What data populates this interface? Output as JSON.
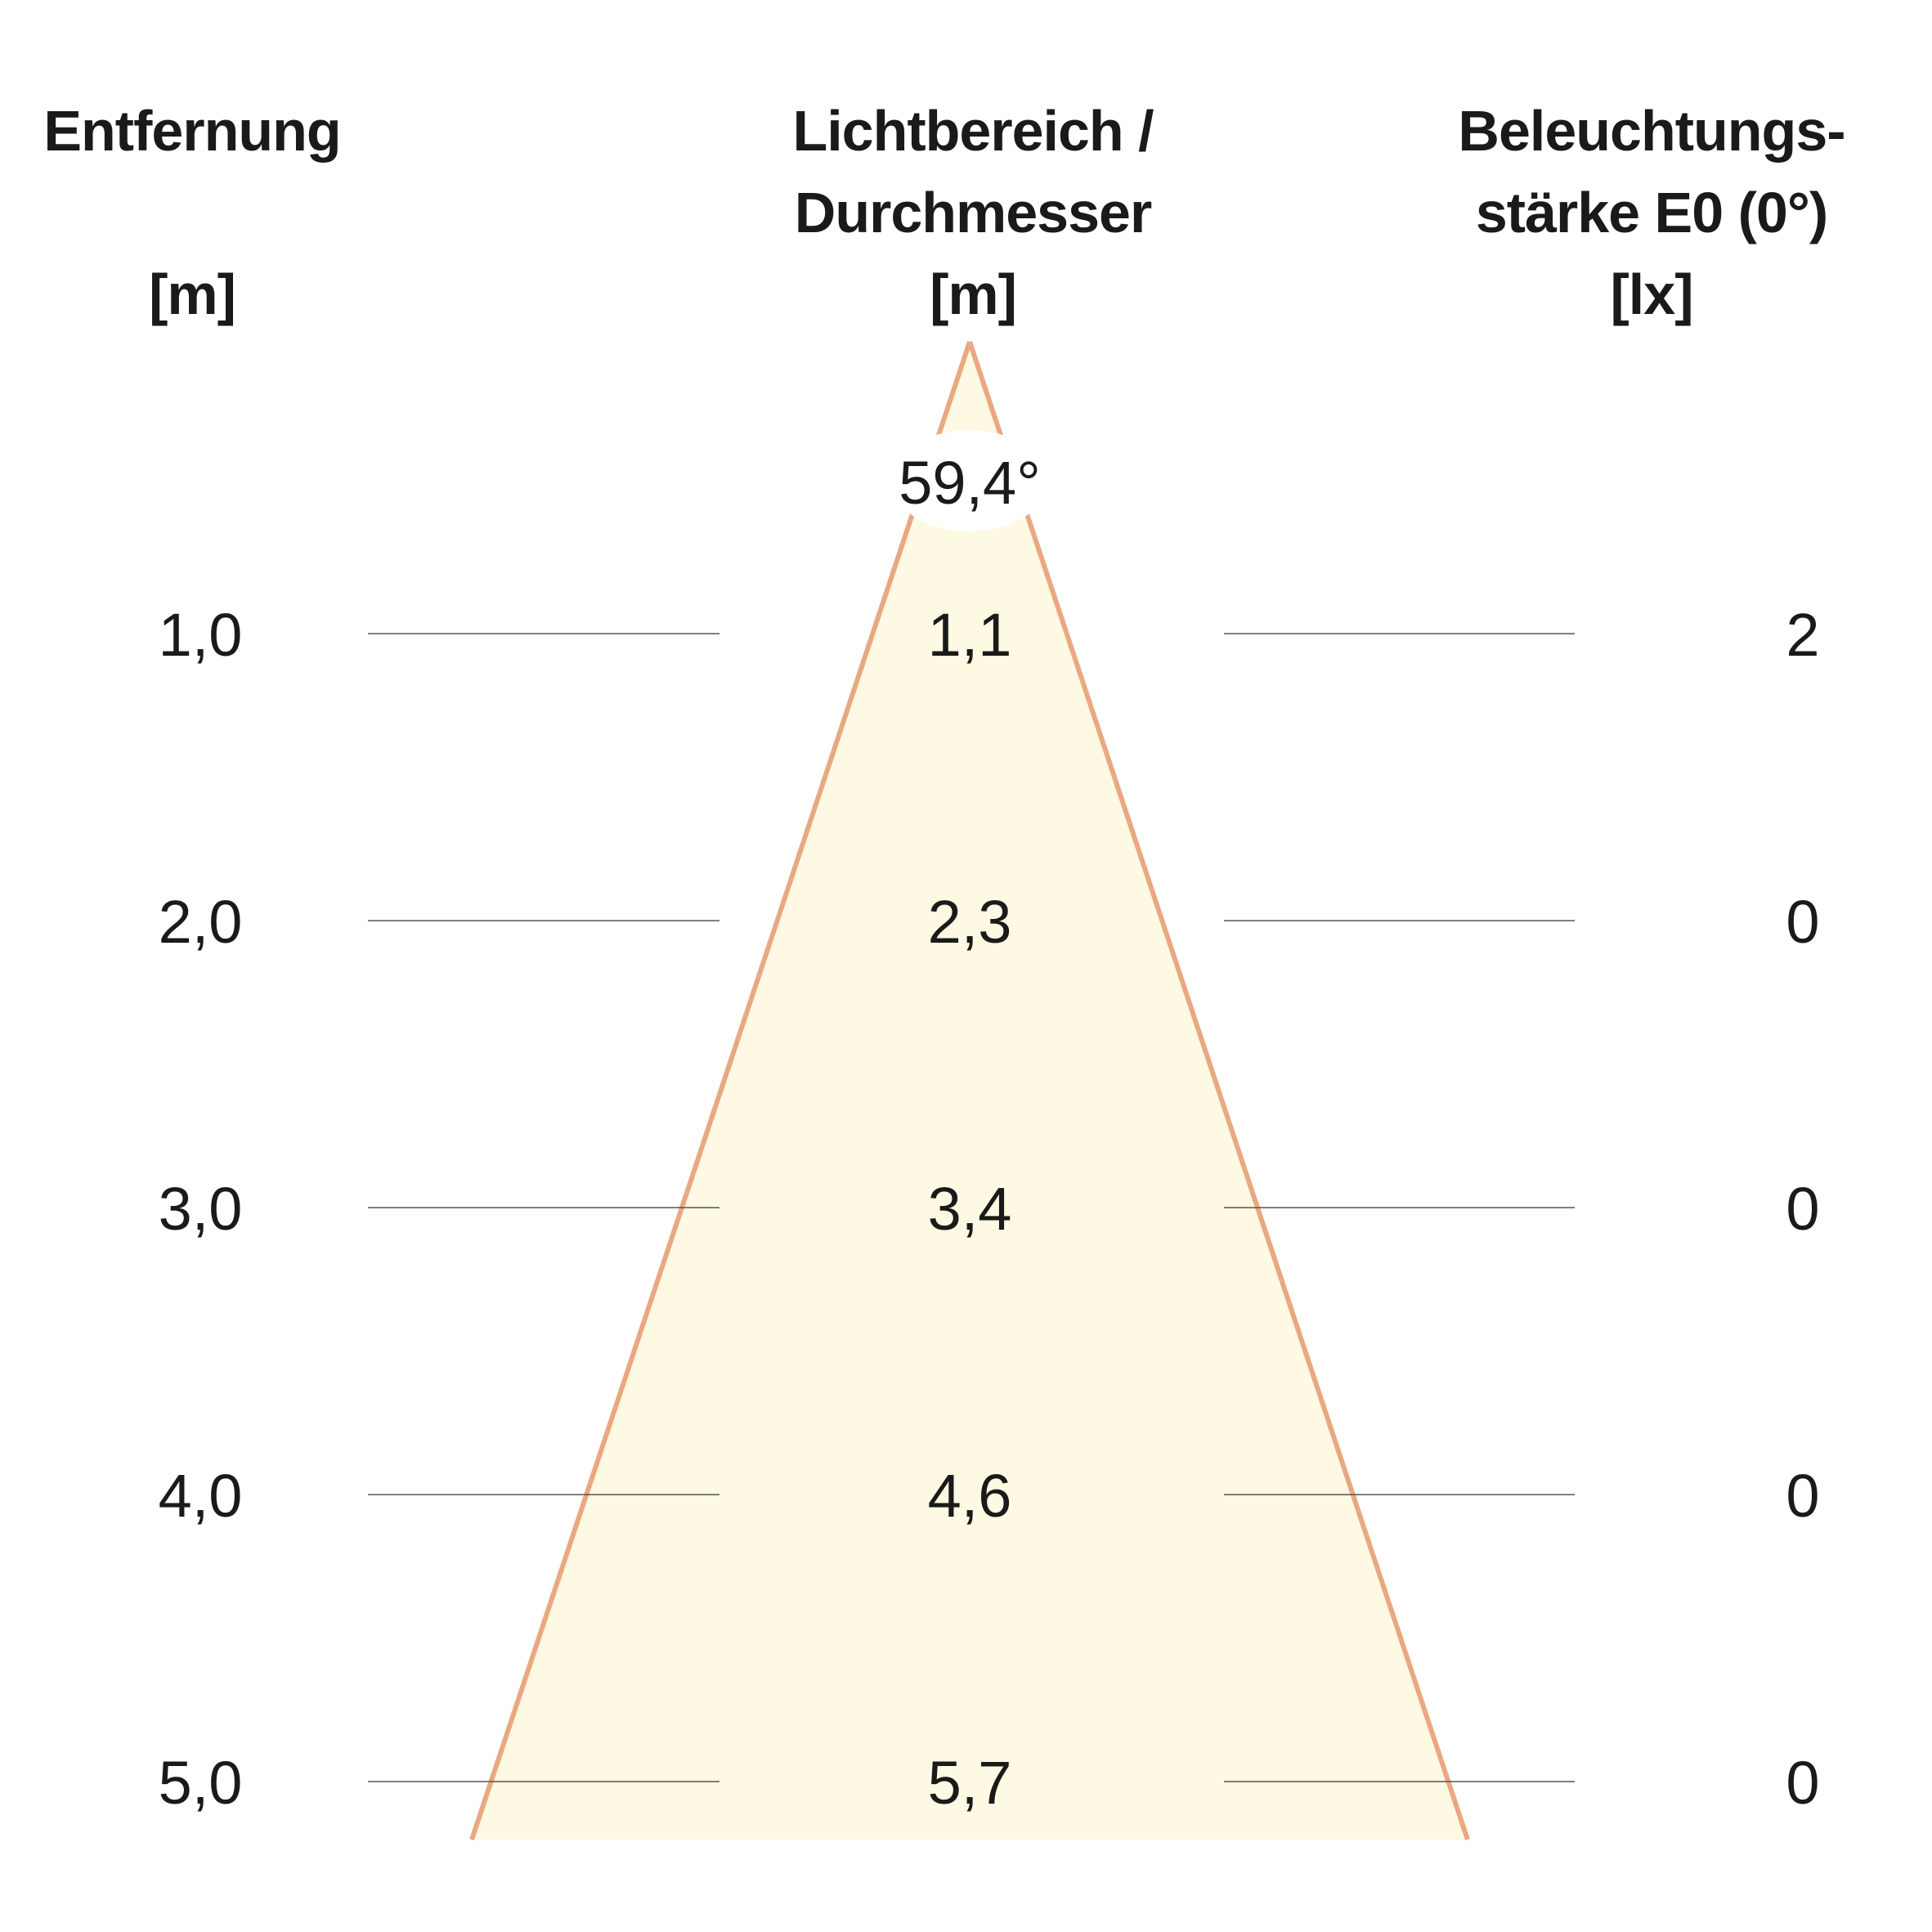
{
  "headers": {
    "distance": [
      "Entfernung",
      "",
      "[m]"
    ],
    "diameter": [
      "Lichtbereich /",
      "Durchmesser",
      "[m]"
    ],
    "illuminance": [
      "Beleuchtungs-",
      "stärke E0 (0°)",
      "[lx]"
    ]
  },
  "beam_angle": "59,4°",
  "colors": {
    "cone_fill": "#fdf9e2",
    "cone_stroke": "#eaa882",
    "row_line": "#555555",
    "text": "#1a1a1a"
  },
  "rows": [
    {
      "distance": "1,0",
      "diameter": "1,1",
      "illuminance": "2"
    },
    {
      "distance": "2,0",
      "diameter": "2,3",
      "illuminance": "0"
    },
    {
      "distance": "3,0",
      "diameter": "3,4",
      "illuminance": "0"
    },
    {
      "distance": "4,0",
      "diameter": "4,6",
      "illuminance": "0"
    },
    {
      "distance": "5,0",
      "diameter": "5,7",
      "illuminance": "0"
    }
  ]
}
